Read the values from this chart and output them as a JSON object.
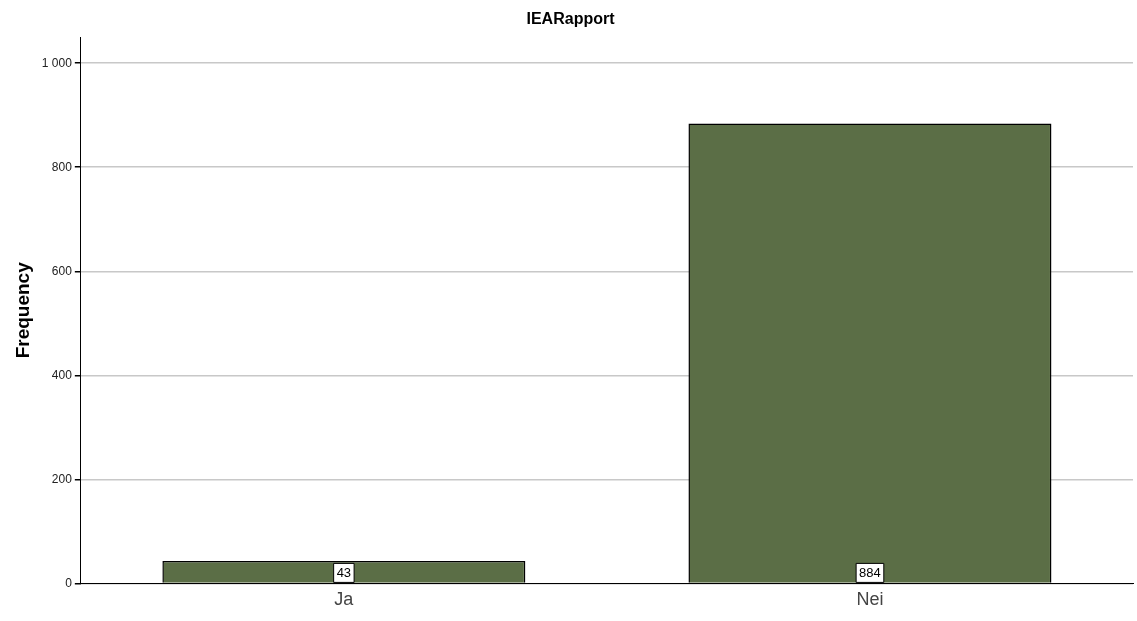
{
  "chart_data": {
    "type": "bar",
    "title": "IEARapport",
    "ylabel": "Frequency",
    "categories": [
      "Ja",
      "Nei"
    ],
    "values": [
      43,
      884
    ],
    "color": "#5b6e46",
    "ylim": [
      0,
      1050
    ],
    "yticks": [
      0,
      200,
      400,
      600,
      800,
      {
        "value": 1000,
        "label": "1 000"
      }
    ],
    "grid": "y",
    "data_labels": true
  }
}
